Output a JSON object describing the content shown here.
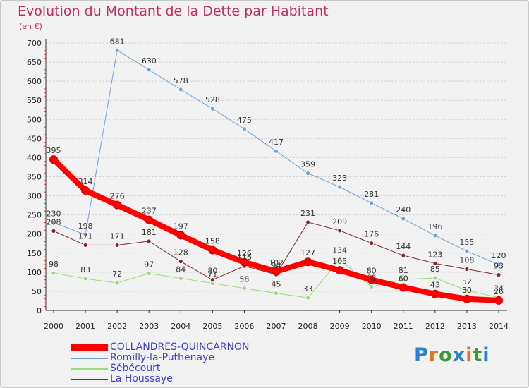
{
  "title": "Evolution du Montant de la Dette par Habitant",
  "unit": "(en €)",
  "logo": {
    "text": "Proxiti",
    "letter_colors": [
      "#2a7fd0",
      "#e07820",
      "#3a9a3a",
      "#2a7fd0",
      "#e07820",
      "#3a9a3a",
      "#2a7fd0"
    ]
  },
  "chart_data": {
    "type": "line",
    "title": "Evolution du Montant de la Dette par Habitant",
    "ylabel": "(en €)",
    "xlabel": "",
    "x": [
      "2000",
      "2001",
      "2002",
      "2003",
      "2004",
      "2005",
      "2006",
      "2007",
      "2008",
      "2009",
      "2010",
      "2011",
      "2012",
      "2013",
      "2014"
    ],
    "ylim": [
      0,
      700
    ],
    "yticks": [
      0,
      50,
      100,
      150,
      200,
      250,
      300,
      350,
      400,
      450,
      500,
      550,
      600,
      650,
      700
    ],
    "grid": "horizontal",
    "legend_position": "bottom-left",
    "series": [
      {
        "name": "COLLANDRES-QUINCARNON",
        "color": "#ff0000",
        "width": 8,
        "values": [
          395,
          314,
          276,
          237,
          197,
          158,
          126,
          102,
          127,
          105,
          80,
          60,
          43,
          30,
          26
        ]
      },
      {
        "name": "Romilly-la-Puthenaye",
        "color": "#6fa3d8",
        "width": 1,
        "values": [
          230,
          198,
          681,
          630,
          578,
          528,
          475,
          417,
          359,
          323,
          281,
          240,
          196,
          155,
          120
        ]
      },
      {
        "name": "Sébécourt",
        "color": "#99dd77",
        "width": 1,
        "values": [
          98,
          83,
          72,
          97,
          84,
          71,
          58,
          45,
          33,
          134,
          62,
          81,
          85,
          52,
          34
        ]
      },
      {
        "name": "La Houssaye",
        "color": "#7a2a2a",
        "width": 1,
        "values": [
          208,
          171,
          171,
          181,
          128,
          80,
          116,
          94,
          231,
          209,
          176,
          144,
          123,
          108,
          93
        ]
      }
    ]
  }
}
